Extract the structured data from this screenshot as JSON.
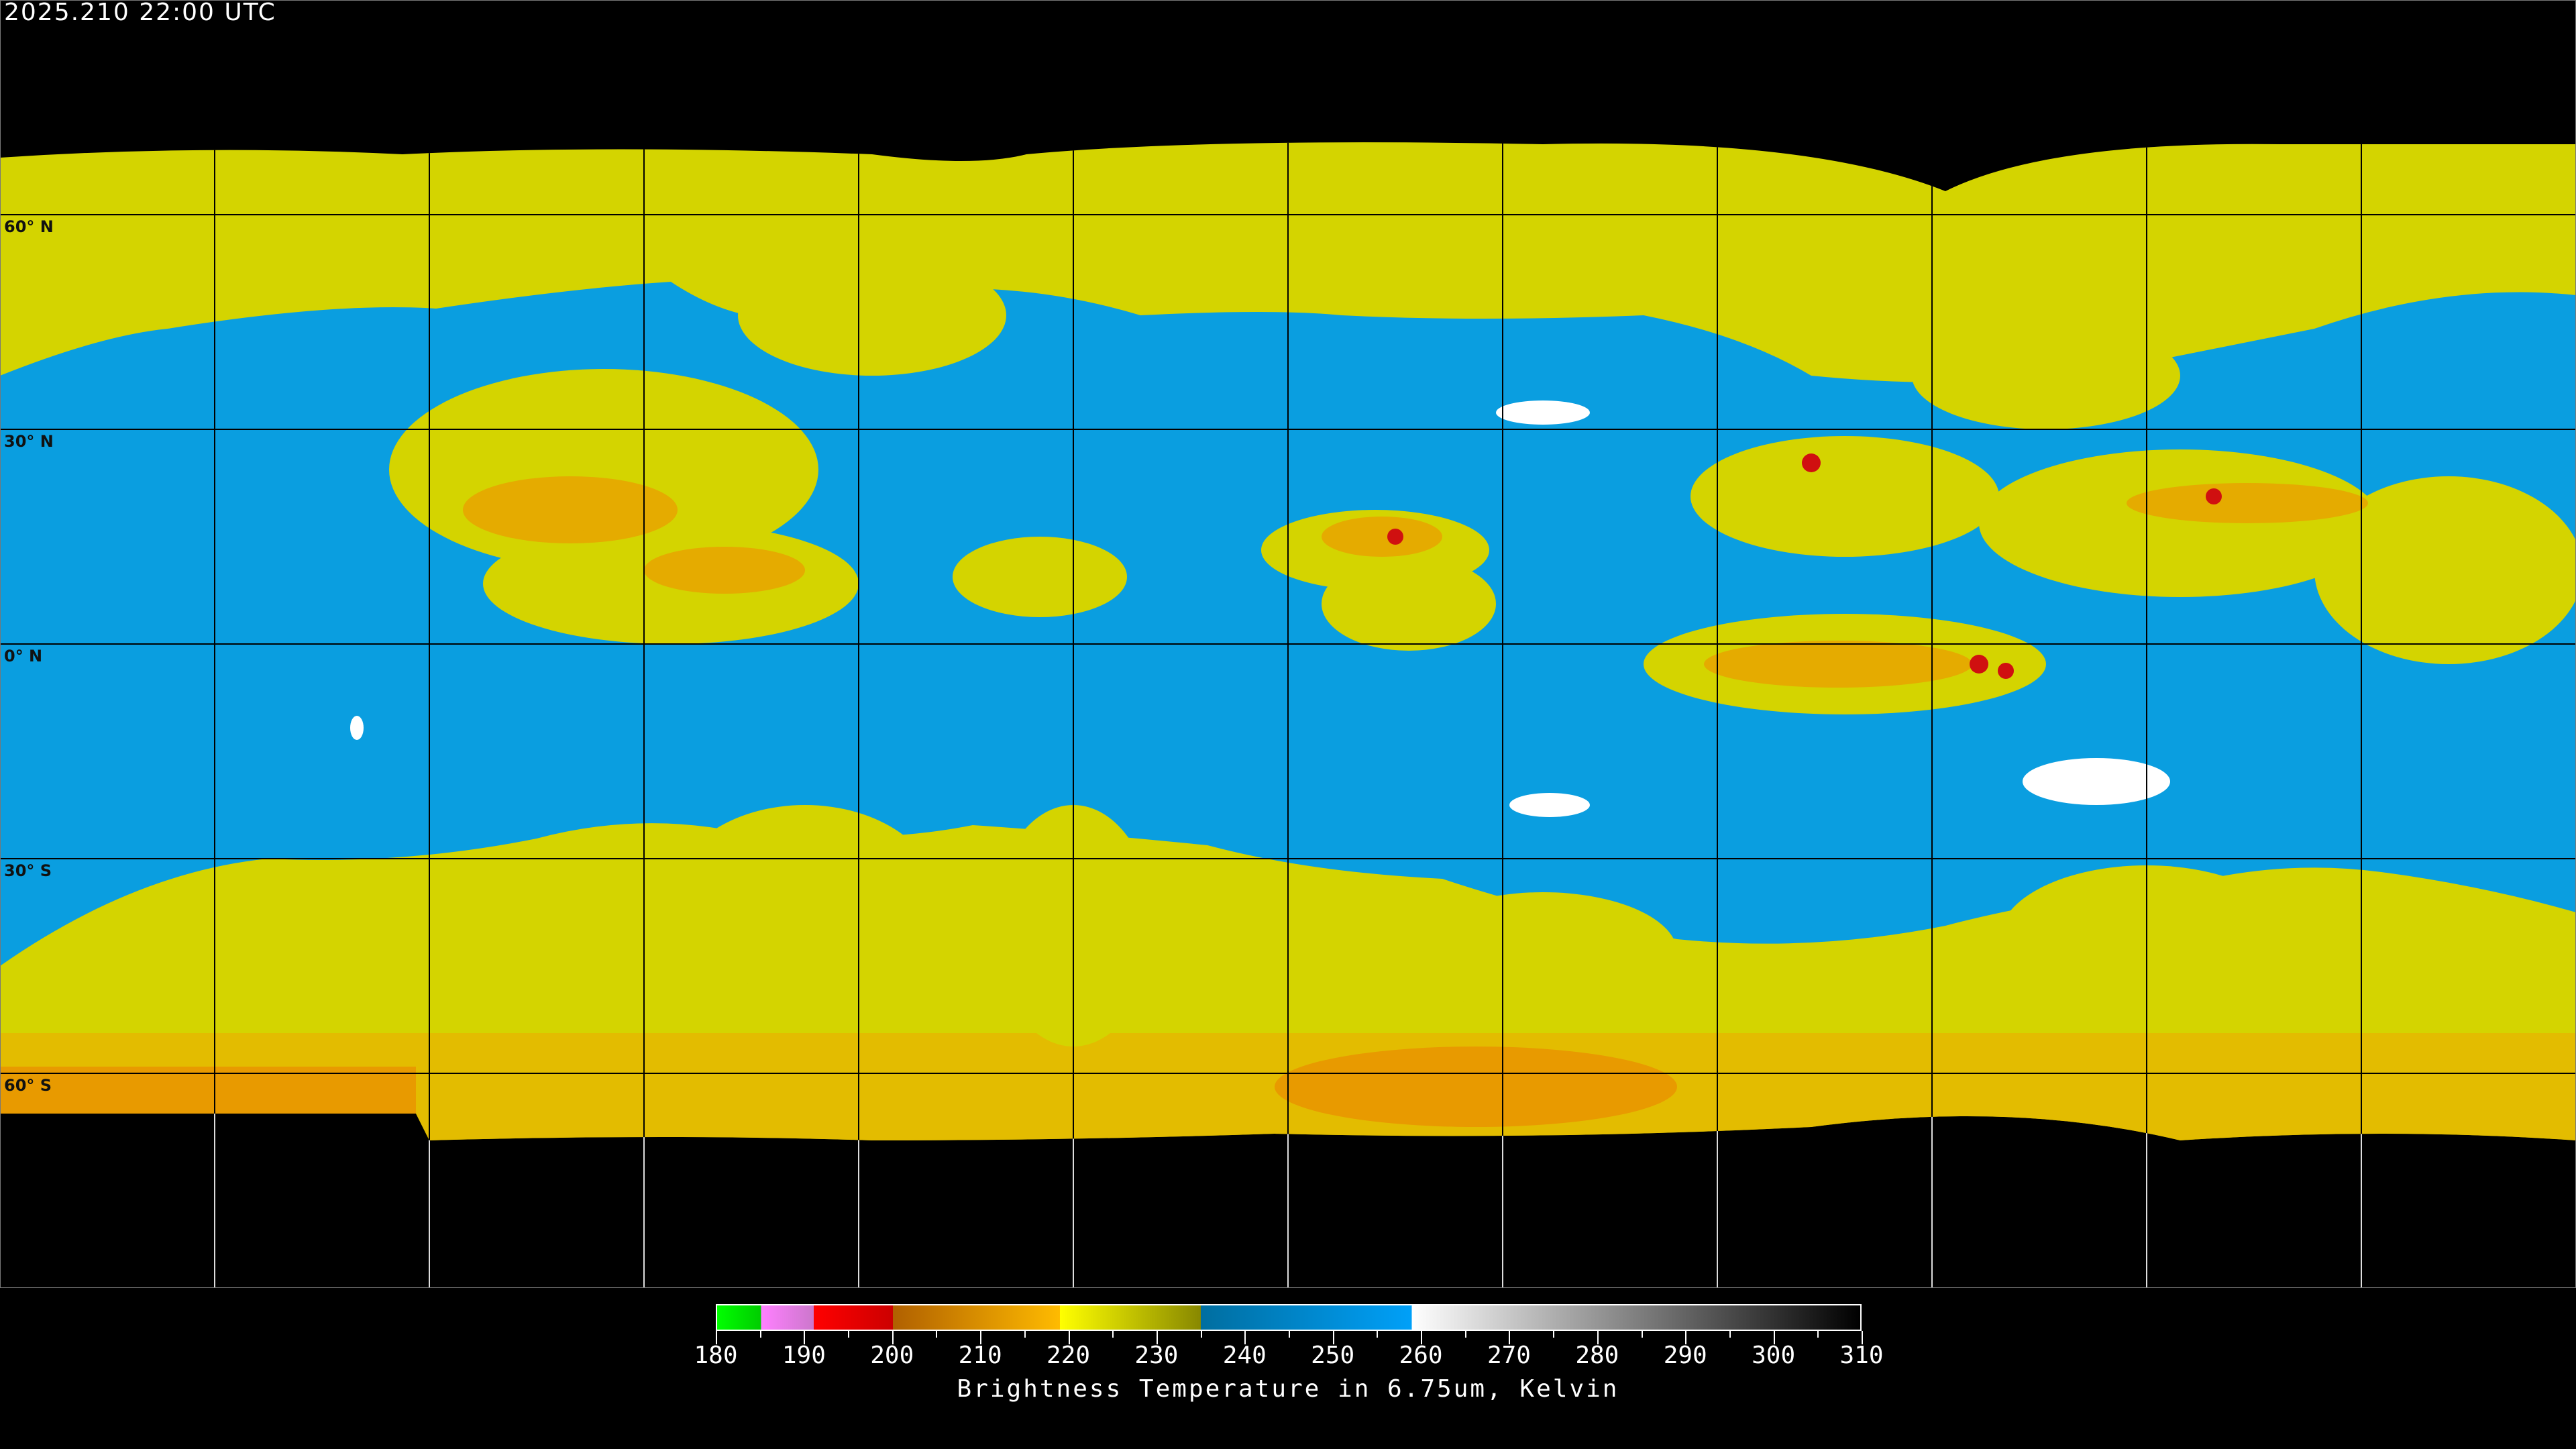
{
  "header": {
    "timestamp": "2025.210 22:00 UTC"
  },
  "map": {
    "projection": "equirectangular",
    "grid_spacing_deg": 30,
    "lat_labels": [
      "60° N",
      "30° N",
      "0° N",
      "30° S",
      "60° S"
    ],
    "lat_values": [
      60,
      30,
      0,
      -30,
      -60
    ],
    "colors": {
      "dry_blue": "#0aa0e6",
      "moist_yellow": "#d8d800",
      "cold_orange": "#f0a000",
      "very_cold_red": "#d01010",
      "warm_white": "#ffffff",
      "background": "#000000"
    }
  },
  "colorbar": {
    "title": "Brightness Temperature in 6.75um, Kelvin",
    "range": [
      180,
      310
    ],
    "tick_labels": [
      "180",
      "190",
      "200",
      "210",
      "220",
      "230",
      "240",
      "250",
      "260",
      "270",
      "280",
      "290",
      "300",
      "310"
    ],
    "stops": [
      {
        "k": 180,
        "color": "#00ff00"
      },
      {
        "k": 185,
        "color": "#00cc00"
      },
      {
        "k": 185,
        "color": "#ff80ff"
      },
      {
        "k": 191,
        "color": "#cc77cc"
      },
      {
        "k": 191,
        "color": "#ff0000"
      },
      {
        "k": 200,
        "color": "#cc0000"
      },
      {
        "k": 200,
        "color": "#b06000"
      },
      {
        "k": 219,
        "color": "#ffbb00"
      },
      {
        "k": 219,
        "color": "#ffff00"
      },
      {
        "k": 235,
        "color": "#888800"
      },
      {
        "k": 235,
        "color": "#006ea0"
      },
      {
        "k": 259,
        "color": "#00a0f8"
      },
      {
        "k": 259,
        "color": "#ffffff"
      },
      {
        "k": 310,
        "color": "#000000"
      }
    ]
  }
}
